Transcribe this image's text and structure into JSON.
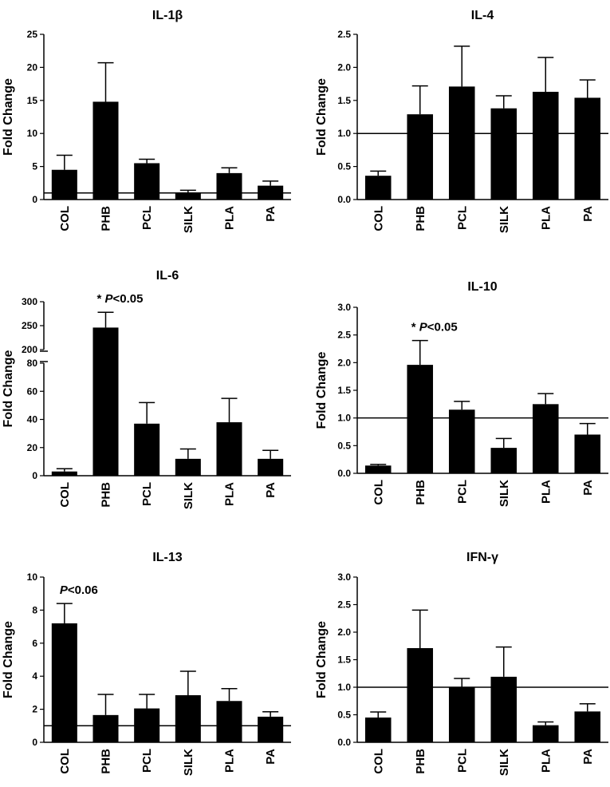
{
  "chart_data": [
    {
      "type": "bar",
      "title": "IL-1β",
      "ylabel": "Fold Change",
      "xlabel": "",
      "categories": [
        "COL",
        "PHB",
        "PCL",
        "SILK",
        "PLA",
        "PA"
      ],
      "values": [
        4.5,
        14.8,
        5.5,
        1.0,
        4.0,
        2.1
      ],
      "errors": [
        2.2,
        5.9,
        0.6,
        0.4,
        0.8,
        0.7
      ],
      "ylim": [
        0,
        25
      ],
      "yticks": [
        "0",
        "5",
        "10",
        "15",
        "20",
        "25"
      ],
      "reference_line": 1.0,
      "annotation": null
    },
    {
      "type": "bar",
      "title": "IL-4",
      "ylabel": "Fold Change",
      "xlabel": "",
      "categories": [
        "COL",
        "PHB",
        "PCL",
        "SILK",
        "PLA",
        "PA"
      ],
      "values": [
        0.36,
        1.29,
        1.71,
        1.38,
        1.63,
        1.54
      ],
      "errors": [
        0.07,
        0.43,
        0.61,
        0.19,
        0.52,
        0.27
      ],
      "ylim": [
        0,
        2.5
      ],
      "yticks": [
        "0.0",
        "0.5",
        "1.0",
        "1.5",
        "2.0",
        "2.5"
      ],
      "reference_line": 1.0,
      "annotation": null
    },
    {
      "type": "bar",
      "title": "IL-6",
      "ylabel": "Fold Change",
      "xlabel": "",
      "categories": [
        "COL",
        "PHB",
        "PCL",
        "SILK",
        "PLA",
        "PA"
      ],
      "values": [
        3,
        246,
        37,
        12,
        38,
        12
      ],
      "errors": [
        2,
        32,
        15,
        7,
        17,
        6
      ],
      "ylim": [
        0,
        300
      ],
      "axis_break": {
        "lower": [
          0,
          80
        ],
        "upper": [
          200,
          300
        ]
      },
      "yticks": [
        "0",
        "20",
        "40",
        "60",
        "80",
        "200",
        "250",
        "300"
      ],
      "reference_line": null,
      "annotation": {
        "prefix": "* ",
        "italic": "P",
        "suffix": "<0.05",
        "category": "PHB"
      }
    },
    {
      "type": "bar",
      "title": "IL-10",
      "ylabel": "Fold Change",
      "xlabel": "",
      "categories": [
        "COL",
        "PHB",
        "PCL",
        "SILK",
        "PLA",
        "PA"
      ],
      "values": [
        0.14,
        1.96,
        1.15,
        0.46,
        1.25,
        0.7
      ],
      "errors": [
        0.02,
        0.44,
        0.15,
        0.17,
        0.19,
        0.2
      ],
      "ylim": [
        0,
        3.0
      ],
      "yticks": [
        "0.0",
        "0.5",
        "1.0",
        "1.5",
        "2.0",
        "2.5",
        "3.0"
      ],
      "reference_line": 1.0,
      "annotation": {
        "prefix": "* ",
        "italic": "P",
        "suffix": "<0.05",
        "category": "PHB"
      }
    },
    {
      "type": "bar",
      "title": "IL-13",
      "ylabel": "Fold Change",
      "xlabel": "",
      "categories": [
        "COL",
        "PHB",
        "PCL",
        "SILK",
        "PLA",
        "PA"
      ],
      "values": [
        7.2,
        1.65,
        2.05,
        2.85,
        2.5,
        1.55
      ],
      "errors": [
        1.2,
        1.25,
        0.85,
        1.45,
        0.75,
        0.3
      ],
      "ylim": [
        0,
        10
      ],
      "yticks": [
        "0",
        "2",
        "4",
        "6",
        "8",
        "10"
      ],
      "reference_line": 1.0,
      "annotation": {
        "prefix": "",
        "italic": "P",
        "suffix": "<0.06",
        "category": "COL"
      }
    },
    {
      "type": "bar",
      "title": "IFN-γ",
      "ylabel": "Fold Change",
      "xlabel": "",
      "categories": [
        "COL",
        "PHB",
        "PCL",
        "SILK",
        "PLA",
        "PA"
      ],
      "values": [
        0.45,
        1.71,
        1.0,
        1.19,
        0.31,
        0.56
      ],
      "errors": [
        0.1,
        0.69,
        0.16,
        0.54,
        0.06,
        0.14
      ],
      "ylim": [
        0,
        3.0
      ],
      "yticks": [
        "0.0",
        "0.5",
        "1.0",
        "1.5",
        "2.0",
        "2.5",
        "3.0"
      ],
      "reference_line": 1.0,
      "annotation": null
    }
  ],
  "colors": {
    "bar": "#000000",
    "axis": "#000000",
    "background": "#ffffff"
  }
}
